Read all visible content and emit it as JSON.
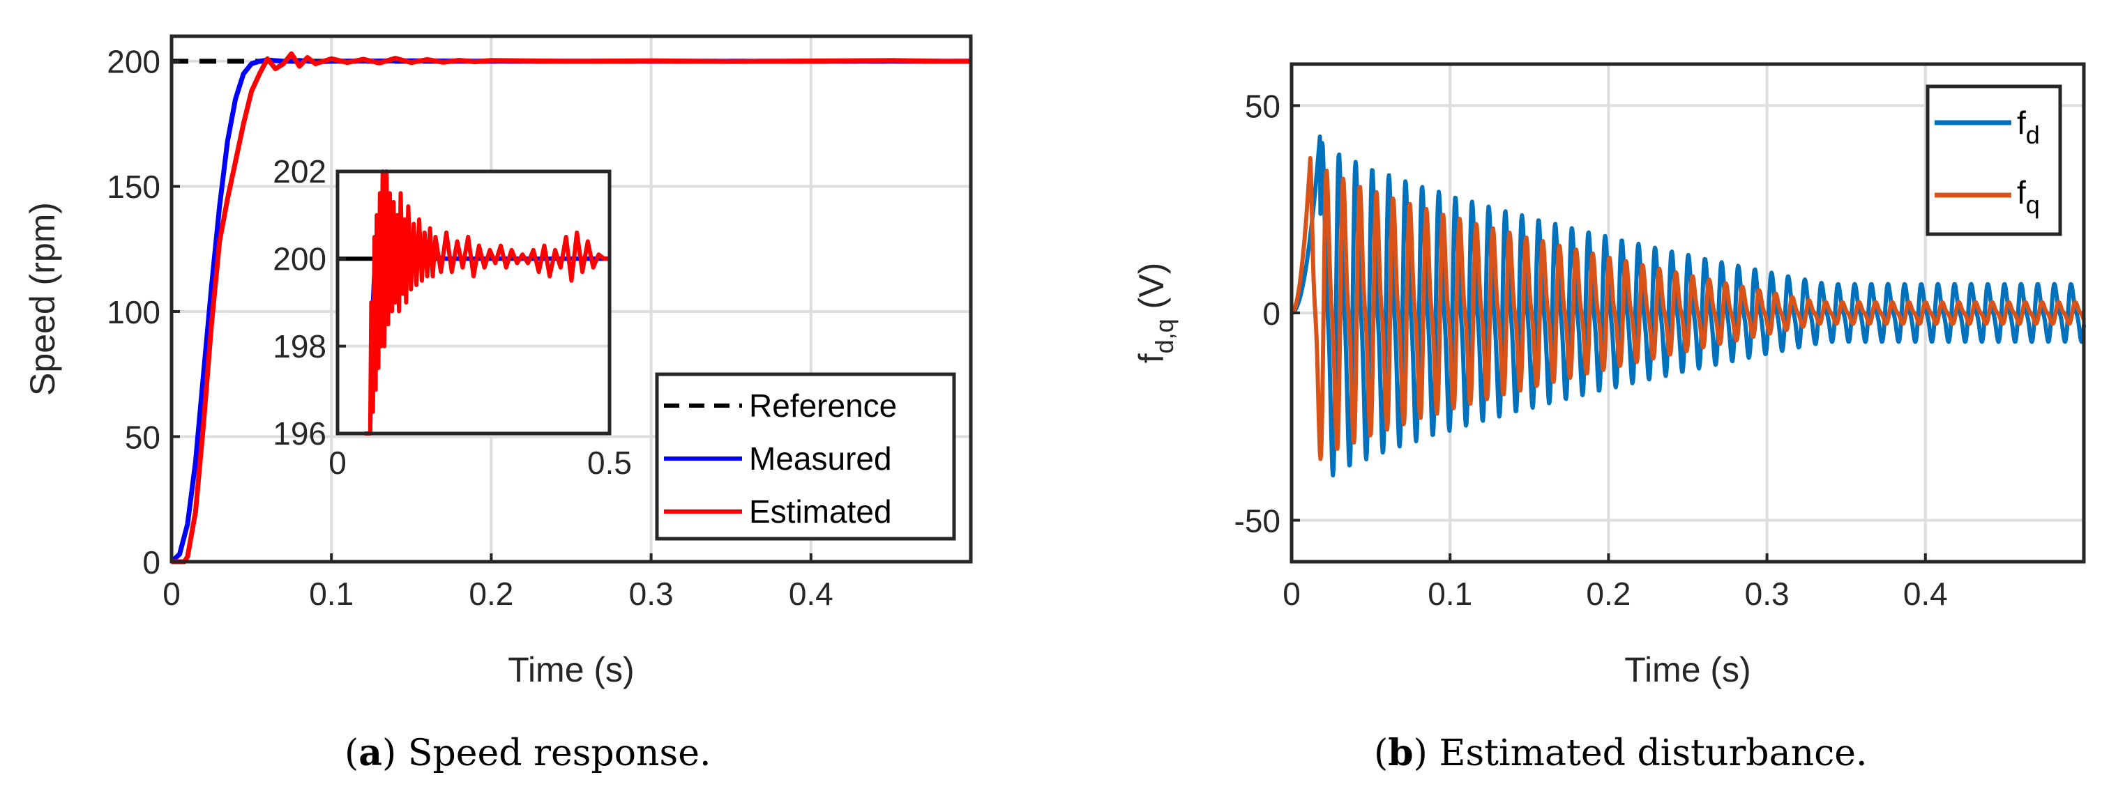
{
  "chart_data": [
    {
      "type": "line",
      "panel": "a",
      "caption_label": "a",
      "caption_text": "Speed response.",
      "xlabel": "Time (s)",
      "ylabel": "Speed (rpm)",
      "xlim": [
        0,
        0.5
      ],
      "ylim": [
        0,
        210
      ],
      "xticks": [
        0,
        0.1,
        0.2,
        0.3,
        0.4
      ],
      "xtick_labels": [
        "0",
        "0.1",
        "0.2",
        "0.3",
        "0.4"
      ],
      "yticks": [
        0,
        50,
        100,
        150,
        200
      ],
      "ytick_labels": [
        "0",
        "50",
        "100",
        "150",
        "200"
      ],
      "grid": true,
      "legend_position": "bottom-right",
      "series": [
        {
          "name": "Reference",
          "color": "#000000",
          "style": "dashed",
          "x": [
            0,
            0.5
          ],
          "y": [
            200,
            200
          ]
        },
        {
          "name": "Measured",
          "color": "#0000ff",
          "style": "solid",
          "x": [
            0,
            0.005,
            0.01,
            0.015,
            0.02,
            0.025,
            0.03,
            0.035,
            0.04,
            0.045,
            0.05,
            0.055,
            0.06,
            0.07,
            0.08,
            0.09,
            0.1,
            0.15,
            0.2,
            0.3,
            0.4,
            0.5
          ],
          "y": [
            0,
            3,
            15,
            40,
            75,
            110,
            142,
            168,
            185,
            195,
            199,
            200,
            200.5,
            200,
            200.3,
            199.8,
            200,
            200.2,
            200,
            200,
            200,
            200
          ]
        },
        {
          "name": "Estimated",
          "color": "#ff0000",
          "style": "solid",
          "x": [
            0,
            0.008,
            0.01,
            0.015,
            0.02,
            0.025,
            0.03,
            0.035,
            0.04,
            0.045,
            0.05,
            0.055,
            0.06,
            0.065,
            0.07,
            0.075,
            0.08,
            0.085,
            0.09,
            0.1,
            0.11,
            0.12,
            0.13,
            0.14,
            0.15,
            0.16,
            0.17,
            0.18,
            0.19,
            0.2,
            0.25,
            0.3,
            0.35,
            0.4,
            0.45,
            0.48,
            0.5
          ],
          "y": [
            0,
            0,
            2,
            20,
            55,
            95,
            128,
            145,
            160,
            175,
            188,
            195,
            201,
            197,
            199,
            203,
            198,
            201.5,
            199,
            201,
            199.5,
            200.8,
            199.3,
            201.2,
            199.5,
            200.7,
            199.6,
            200.4,
            199.8,
            200.3,
            200,
            200.2,
            199.9,
            200.1,
            200.3,
            200,
            200
          ]
        }
      ],
      "inset": {
        "xlim": [
          0,
          0.5
        ],
        "ylim": [
          196,
          202
        ],
        "xticks": [
          0,
          0.5
        ],
        "xtick_labels": [
          "0",
          "0.5"
        ],
        "yticks": [
          196,
          198,
          200,
          202
        ],
        "ytick_labels": [
          "196",
          "198",
          "200",
          "202"
        ],
        "grid": true,
        "series": [
          {
            "name": "Reference",
            "color": "#000000",
            "x": [
              0,
              0.5
            ],
            "y": [
              200,
              200
            ]
          },
          {
            "name": "Measured",
            "color": "#0000ff",
            "x": [
              0.06,
              0.065,
              0.07,
              0.08,
              0.1,
              0.2,
              0.3,
              0.4,
              0.5
            ],
            "y": [
              196,
              199,
              200.4,
              200,
              200.2,
              200,
              200,
              200,
              200
            ]
          },
          {
            "name": "Estimated",
            "color": "#ff0000",
            "x": [
              0.05,
              0.06,
              0.062,
              0.065,
              0.068,
              0.07,
              0.072,
              0.075,
              0.078,
              0.08,
              0.083,
              0.086,
              0.09,
              0.093,
              0.096,
              0.1,
              0.103,
              0.106,
              0.11,
              0.113,
              0.116,
              0.12,
              0.123,
              0.126,
              0.13,
              0.135,
              0.14,
              0.145,
              0.15,
              0.155,
              0.16,
              0.165,
              0.17,
              0.175,
              0.18,
              0.19,
              0.2,
              0.21,
              0.22,
              0.23,
              0.24,
              0.25,
              0.26,
              0.27,
              0.28,
              0.29,
              0.3,
              0.31,
              0.32,
              0.33,
              0.34,
              0.35,
              0.36,
              0.37,
              0.38,
              0.39,
              0.4,
              0.41,
              0.42,
              0.43,
              0.44,
              0.45,
              0.46,
              0.47,
              0.48,
              0.49,
              0.5
            ],
            "y": [
              196,
              196,
              199,
              196.5,
              200.5,
              197,
              201,
              197.5,
              201.5,
              198,
              202,
              198,
              202,
              198.5,
              201.5,
              198.8,
              201.3,
              199,
              201,
              198.8,
              201.5,
              199.2,
              200.9,
              199,
              201.2,
              199.3,
              200.8,
              199.4,
              200.9,
              199.5,
              200.6,
              199.6,
              200.7,
              199.6,
              200.5,
              199.7,
              200.6,
              199.7,
              200.4,
              199.8,
              200.5,
              199.6,
              200.3,
              199.8,
              200.2,
              199.9,
              200.3,
              199.8,
              200.2,
              199.9,
              200.1,
              199.9,
              200.2,
              199.7,
              200.3,
              199.6,
              200.2,
              199.8,
              200.5,
              199.5,
              200.6,
              199.7,
              200.4,
              199.8,
              200.1,
              200,
              200
            ]
          }
        ]
      }
    },
    {
      "type": "line",
      "panel": "b",
      "caption_label": "b",
      "caption_text": "Estimated disturbance.",
      "xlabel": "Time (s)",
      "ylabel": "f",
      "ylabel_sub": "d,q",
      "ylabel_unit": " (V)",
      "xlim": [
        0,
        0.5
      ],
      "ylim": [
        -60,
        60
      ],
      "xticks": [
        0,
        0.1,
        0.2,
        0.3,
        0.4
      ],
      "xtick_labels": [
        "0",
        "0.1",
        "0.2",
        "0.3",
        "0.4"
      ],
      "yticks": [
        -50,
        0,
        50
      ],
      "ytick_labels": [
        "-50",
        "0",
        "50"
      ],
      "grid": true,
      "legend_position": "top-right",
      "series": [
        {
          "name": "f",
          "sub": "d",
          "color": "#0072bd",
          "style": "solid",
          "start_amplitude": 48,
          "end_amplitude": 8,
          "period_s": 0.0105,
          "onset_s": 0.018
        },
        {
          "name": "f",
          "sub": "q",
          "color": "#d95319",
          "style": "solid",
          "start_amplitude": 43,
          "end_amplitude": 3,
          "period_s": 0.0105,
          "onset_s": 0.012
        }
      ]
    }
  ]
}
